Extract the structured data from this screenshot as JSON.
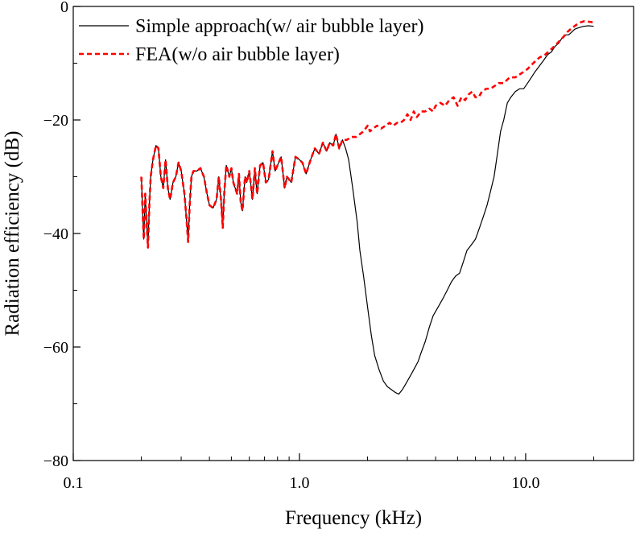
{
  "chart_data": {
    "type": "line",
    "xlabel": "Frequency (kHz)",
    "ylabel": "Radiation efficiency (dB)",
    "xscale": "log",
    "xlim": [
      0.1,
      30
    ],
    "ylim": [
      -80,
      0
    ],
    "xticks": [
      {
        "value": 0.1,
        "label": "0.1"
      },
      {
        "value": 1.0,
        "label": "1.0"
      },
      {
        "value": 10.0,
        "label": "10.0"
      }
    ],
    "yticks": [
      {
        "value": 0,
        "label": "0"
      },
      {
        "value": -20,
        "label": "−20"
      },
      {
        "value": -40,
        "label": "−40"
      },
      {
        "value": -60,
        "label": "−60"
      },
      {
        "value": -80,
        "label": "−80"
      }
    ],
    "grid": false,
    "legend_position": "top-left",
    "series": [
      {
        "name": "Simple approach(w/ air bubble layer)",
        "color": "#000000",
        "style": "solid",
        "points": [
          [
            0.2,
            -30
          ],
          [
            0.203,
            -37
          ],
          [
            0.205,
            -41
          ],
          [
            0.208,
            -33
          ],
          [
            0.211,
            -38
          ],
          [
            0.214,
            -42.5
          ],
          [
            0.217,
            -35
          ],
          [
            0.22,
            -30
          ],
          [
            0.225,
            -27
          ],
          [
            0.232,
            -24.5
          ],
          [
            0.238,
            -25
          ],
          [
            0.244,
            -30
          ],
          [
            0.25,
            -32
          ],
          [
            0.256,
            -27
          ],
          [
            0.262,
            -32
          ],
          [
            0.268,
            -34
          ],
          [
            0.276,
            -31
          ],
          [
            0.284,
            -30
          ],
          [
            0.292,
            -27.5
          ],
          [
            0.3,
            -29
          ],
          [
            0.31,
            -33
          ],
          [
            0.316,
            -37
          ],
          [
            0.322,
            -41.5
          ],
          [
            0.327,
            -35
          ],
          [
            0.333,
            -30
          ],
          [
            0.34,
            -29
          ],
          [
            0.352,
            -29
          ],
          [
            0.365,
            -28.5
          ],
          [
            0.378,
            -30
          ],
          [
            0.39,
            -33
          ],
          [
            0.4,
            -35
          ],
          [
            0.415,
            -35.5
          ],
          [
            0.43,
            -34
          ],
          [
            0.44,
            -30
          ],
          [
            0.45,
            -34
          ],
          [
            0.458,
            -39
          ],
          [
            0.465,
            -33
          ],
          [
            0.475,
            -28
          ],
          [
            0.49,
            -30
          ],
          [
            0.5,
            -28.5
          ],
          [
            0.51,
            -31
          ],
          [
            0.53,
            -33
          ],
          [
            0.54,
            -29.5
          ],
          [
            0.55,
            -34.5
          ],
          [
            0.56,
            -36
          ],
          [
            0.575,
            -30
          ],
          [
            0.585,
            -31
          ],
          [
            0.6,
            -29
          ],
          [
            0.61,
            -31.5
          ],
          [
            0.62,
            -34
          ],
          [
            0.635,
            -28.5
          ],
          [
            0.65,
            -33
          ],
          [
            0.67,
            -28
          ],
          [
            0.69,
            -27.5
          ],
          [
            0.71,
            -31
          ],
          [
            0.73,
            -30.5
          ],
          [
            0.76,
            -25.5
          ],
          [
            0.78,
            -29
          ],
          [
            0.8,
            -28
          ],
          [
            0.83,
            -26.5
          ],
          [
            0.86,
            -32
          ],
          [
            0.88,
            -30
          ],
          [
            0.92,
            -31
          ],
          [
            0.96,
            -26.5
          ],
          [
            1.0,
            -27
          ],
          [
            1.03,
            -27.5
          ],
          [
            1.07,
            -29.5
          ],
          [
            1.12,
            -27
          ],
          [
            1.17,
            -25
          ],
          [
            1.22,
            -26
          ],
          [
            1.27,
            -24
          ],
          [
            1.32,
            -25.5
          ],
          [
            1.36,
            -24
          ],
          [
            1.41,
            -24.5
          ],
          [
            1.45,
            -22.5
          ],
          [
            1.5,
            -25
          ],
          [
            1.55,
            -23.5
          ],
          [
            1.6,
            -25
          ],
          [
            1.65,
            -27
          ],
          [
            1.72,
            -32
          ],
          [
            1.8,
            -38
          ],
          [
            1.85,
            -43
          ],
          [
            1.92,
            -47.5
          ],
          [
            2.0,
            -53
          ],
          [
            2.08,
            -58
          ],
          [
            2.15,
            -61.5
          ],
          [
            2.25,
            -64
          ],
          [
            2.35,
            -66
          ],
          [
            2.45,
            -67
          ],
          [
            2.55,
            -67.5
          ],
          [
            2.65,
            -68
          ],
          [
            2.75,
            -68.3
          ],
          [
            2.85,
            -67.5
          ],
          [
            2.95,
            -66.5
          ],
          [
            3.05,
            -65.5
          ],
          [
            3.15,
            -64.5
          ],
          [
            3.25,
            -63.5
          ],
          [
            3.35,
            -62.5
          ],
          [
            3.45,
            -61
          ],
          [
            3.6,
            -59
          ],
          [
            3.75,
            -56.5
          ],
          [
            3.9,
            -54.5
          ],
          [
            4.1,
            -53
          ],
          [
            4.3,
            -51.5
          ],
          [
            4.5,
            -50
          ],
          [
            4.7,
            -48.5
          ],
          [
            4.9,
            -47.5
          ],
          [
            5.1,
            -47
          ],
          [
            5.3,
            -45
          ],
          [
            5.5,
            -43
          ],
          [
            5.75,
            -42
          ],
          [
            6.0,
            -41
          ],
          [
            6.25,
            -39
          ],
          [
            6.5,
            -37
          ],
          [
            6.75,
            -35
          ],
          [
            7.0,
            -32.5
          ],
          [
            7.25,
            -30
          ],
          [
            7.5,
            -26
          ],
          [
            7.75,
            -22
          ],
          [
            8.0,
            -20
          ],
          [
            8.3,
            -17
          ],
          [
            8.6,
            -16
          ],
          [
            9.0,
            -15
          ],
          [
            9.4,
            -14.5
          ],
          [
            9.8,
            -14.5
          ],
          [
            10.2,
            -13.5
          ],
          [
            10.6,
            -12.5
          ],
          [
            11.0,
            -11.5
          ],
          [
            11.5,
            -10.5
          ],
          [
            12.0,
            -9.5
          ],
          [
            12.5,
            -8.5
          ],
          [
            13.0,
            -8
          ],
          [
            13.5,
            -7
          ],
          [
            14.0,
            -6.5
          ],
          [
            14.5,
            -5.5
          ],
          [
            15.0,
            -5
          ],
          [
            15.5,
            -5
          ],
          [
            16.0,
            -4.5
          ],
          [
            16.5,
            -4
          ],
          [
            17.0,
            -3.8
          ],
          [
            18.0,
            -3.5
          ],
          [
            19.0,
            -3.4
          ],
          [
            20.0,
            -3.5
          ]
        ]
      },
      {
        "name": "FEA(w/o air bubble layer)",
        "color": "#ff0000",
        "style": "dashed",
        "points": [
          [
            0.2,
            -30
          ],
          [
            0.203,
            -37
          ],
          [
            0.205,
            -41
          ],
          [
            0.208,
            -33
          ],
          [
            0.211,
            -38
          ],
          [
            0.214,
            -42.5
          ],
          [
            0.217,
            -35
          ],
          [
            0.22,
            -30
          ],
          [
            0.225,
            -27
          ],
          [
            0.232,
            -24.5
          ],
          [
            0.238,
            -25
          ],
          [
            0.244,
            -30
          ],
          [
            0.25,
            -32
          ],
          [
            0.256,
            -27
          ],
          [
            0.262,
            -32
          ],
          [
            0.268,
            -34
          ],
          [
            0.276,
            -31
          ],
          [
            0.284,
            -30
          ],
          [
            0.292,
            -27.5
          ],
          [
            0.3,
            -29
          ],
          [
            0.31,
            -33
          ],
          [
            0.316,
            -37
          ],
          [
            0.322,
            -41.5
          ],
          [
            0.327,
            -35
          ],
          [
            0.333,
            -30
          ],
          [
            0.34,
            -29
          ],
          [
            0.352,
            -29
          ],
          [
            0.365,
            -28.5
          ],
          [
            0.378,
            -30
          ],
          [
            0.39,
            -33
          ],
          [
            0.4,
            -35
          ],
          [
            0.415,
            -35.5
          ],
          [
            0.43,
            -34
          ],
          [
            0.44,
            -30
          ],
          [
            0.45,
            -34
          ],
          [
            0.458,
            -39
          ],
          [
            0.465,
            -33
          ],
          [
            0.475,
            -28
          ],
          [
            0.49,
            -30
          ],
          [
            0.5,
            -28.5
          ],
          [
            0.51,
            -31
          ],
          [
            0.53,
            -33
          ],
          [
            0.54,
            -29.5
          ],
          [
            0.55,
            -34.5
          ],
          [
            0.56,
            -36
          ],
          [
            0.575,
            -30
          ],
          [
            0.585,
            -31
          ],
          [
            0.6,
            -29
          ],
          [
            0.61,
            -31.5
          ],
          [
            0.62,
            -34
          ],
          [
            0.635,
            -28.5
          ],
          [
            0.65,
            -33
          ],
          [
            0.67,
            -28
          ],
          [
            0.69,
            -27.5
          ],
          [
            0.71,
            -31
          ],
          [
            0.73,
            -30.5
          ],
          [
            0.76,
            -25.5
          ],
          [
            0.78,
            -29
          ],
          [
            0.8,
            -28
          ],
          [
            0.83,
            -26.5
          ],
          [
            0.86,
            -32
          ],
          [
            0.88,
            -30
          ],
          [
            0.92,
            -31
          ],
          [
            0.96,
            -26.5
          ],
          [
            1.0,
            -27
          ],
          [
            1.03,
            -27.5
          ],
          [
            1.07,
            -29.5
          ],
          [
            1.12,
            -27
          ],
          [
            1.17,
            -25
          ],
          [
            1.22,
            -26
          ],
          [
            1.27,
            -24
          ],
          [
            1.32,
            -25.5
          ],
          [
            1.36,
            -24
          ],
          [
            1.41,
            -24.5
          ],
          [
            1.45,
            -22.5
          ],
          [
            1.5,
            -25
          ],
          [
            1.55,
            -23.5
          ],
          [
            1.62,
            -23.5
          ],
          [
            1.7,
            -23
          ],
          [
            1.78,
            -23
          ],
          [
            1.85,
            -22.5
          ],
          [
            1.92,
            -22
          ],
          [
            2.0,
            -21
          ],
          [
            2.05,
            -22
          ],
          [
            2.12,
            -21.5
          ],
          [
            2.2,
            -21
          ],
          [
            2.3,
            -21.5
          ],
          [
            2.4,
            -21
          ],
          [
            2.5,
            -20.5
          ],
          [
            2.6,
            -21
          ],
          [
            2.7,
            -20.5
          ],
          [
            2.8,
            -20.5
          ],
          [
            2.9,
            -20
          ],
          [
            3.0,
            -19
          ],
          [
            3.1,
            -20
          ],
          [
            3.2,
            -18.5
          ],
          [
            3.3,
            -19.5
          ],
          [
            3.45,
            -18.5
          ],
          [
            3.6,
            -18.5
          ],
          [
            3.75,
            -18
          ],
          [
            3.9,
            -18.5
          ],
          [
            4.0,
            -17.5
          ],
          [
            4.2,
            -17
          ],
          [
            4.4,
            -17.5
          ],
          [
            4.6,
            -16.5
          ],
          [
            4.8,
            -16
          ],
          [
            5.0,
            -17.5
          ],
          [
            5.2,
            -16
          ],
          [
            5.4,
            -16.5
          ],
          [
            5.6,
            -15.5
          ],
          [
            5.8,
            -15
          ],
          [
            6.0,
            -16
          ],
          [
            6.2,
            -16
          ],
          [
            6.4,
            -15
          ],
          [
            6.7,
            -14.5
          ],
          [
            7.0,
            -14.5
          ],
          [
            7.3,
            -14
          ],
          [
            7.6,
            -13.5
          ],
          [
            8.0,
            -13.5
          ],
          [
            8.5,
            -12.5
          ],
          [
            9.0,
            -12.5
          ],
          [
            9.4,
            -12
          ],
          [
            9.8,
            -11.5
          ],
          [
            10.2,
            -11
          ],
          [
            10.8,
            -10
          ],
          [
            11.5,
            -9
          ],
          [
            12.2,
            -8.5
          ],
          [
            13.0,
            -7.5
          ],
          [
            13.8,
            -6.5
          ],
          [
            14.6,
            -5.5
          ],
          [
            15.3,
            -4.5
          ],
          [
            16.0,
            -3.8
          ],
          [
            16.8,
            -3.2
          ],
          [
            17.5,
            -2.8
          ],
          [
            18.2,
            -2.6
          ],
          [
            19.0,
            -2.7
          ],
          [
            20.0,
            -2.8
          ]
        ]
      }
    ]
  }
}
